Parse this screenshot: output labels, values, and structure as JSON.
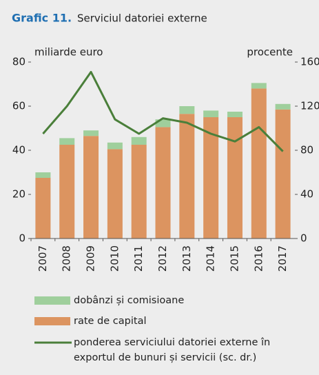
{
  "chart_data": {
    "type": "bar",
    "figure_label": "Grafic 11.",
    "title": "Serviciul datoriei externe",
    "ylabel": "miliarde euro",
    "y2label": "procente",
    "categories": [
      "2007",
      "2008",
      "2009",
      "2010",
      "2011",
      "2012",
      "2013",
      "2014",
      "2015",
      "2016",
      "2017"
    ],
    "series": [
      {
        "name": "dobânzi și comisioane",
        "type": "bar",
        "color": "#9fcf9c",
        "values": [
          2.5,
          3,
          2.5,
          3,
          3.5,
          3.5,
          3.5,
          3,
          2.5,
          2.5,
          2.5
        ]
      },
      {
        "name": "rate de capital",
        "type": "bar",
        "color": "#dc9460",
        "values": [
          27.5,
          42.5,
          46.5,
          40.5,
          42.5,
          50.5,
          56.5,
          55,
          55,
          68,
          58.5
        ]
      },
      {
        "name": "ponderea serviciului datoriei externe în exportul de bunuri și servicii (sc. dr.)",
        "type": "line",
        "axis": "y2",
        "color": "#4a7f3a",
        "values": [
          95,
          120,
          151,
          108,
          95,
          109,
          105,
          95,
          88,
          101,
          79
        ]
      }
    ],
    "ylim": [
      0,
      80
    ],
    "yticks": [
      0,
      20,
      40,
      60,
      80
    ],
    "y2lim": [
      0,
      160
    ],
    "y2ticks": [
      0,
      40,
      80,
      120,
      160
    ]
  }
}
